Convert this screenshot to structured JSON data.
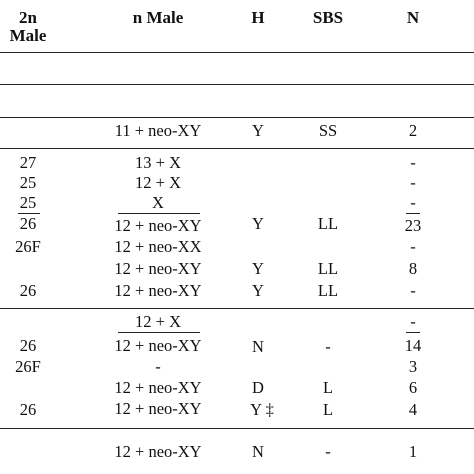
{
  "headers": {
    "col1_line1": "2n",
    "col1_line2": "Male",
    "col2": "n Male",
    "col3": "H",
    "col4": "SBS",
    "col5": "N"
  },
  "rows": [
    {
      "c2": "11 + neo-XY",
      "c3": "Y",
      "c4": "SS",
      "c5": "2"
    },
    {
      "c1": "27",
      "c2": "13 + X",
      "c5": "-"
    },
    {
      "c1": "25",
      "c2": "12 + X",
      "c5": "-"
    },
    {
      "c1": "25",
      "c2": "X",
      "c5": "-"
    },
    {
      "c1": "26",
      "c2": "12 + neo-XY",
      "c3": "Y",
      "c4": "LL",
      "c5": "23"
    },
    {
      "c1": "26F",
      "c2": "12 + neo-XX",
      "c5": "-"
    },
    {
      "c2": "12 + neo-XY",
      "c3": "Y",
      "c4": "LL",
      "c5": "8"
    },
    {
      "c1": "26",
      "c2": "12 + neo-XY",
      "c3": "Y",
      "c4": "LL",
      "c5": "-"
    },
    {
      "c2": "12 + X",
      "c5": "-"
    },
    {
      "c1": "26",
      "c2": "12 + neo-XY",
      "c3": "N",
      "c4": "-",
      "c5": "14"
    },
    {
      "c1": "26F",
      "c2": "-",
      "c5": "3"
    },
    {
      "c2": "12 + neo-XY",
      "c3": "D",
      "c4": "L",
      "c5": "6"
    },
    {
      "c1": "26",
      "c2": "12 + neo-XY",
      "c3": "Y ‡",
      "c4": "L",
      "c5": "4"
    },
    {
      "c2": "12 + neo-XY",
      "c3": "N",
      "c4": "-",
      "c5": "1"
    }
  ]
}
